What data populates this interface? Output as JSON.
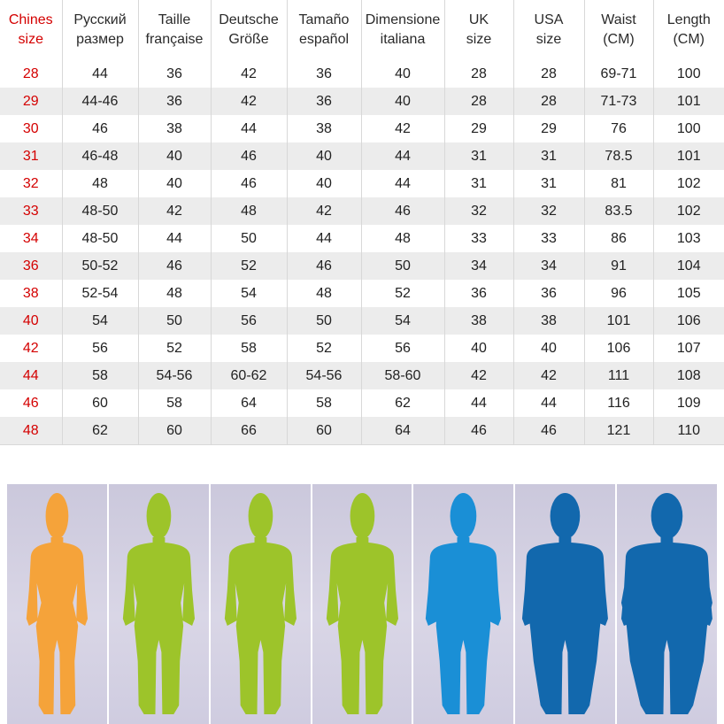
{
  "table": {
    "headers": [
      "Chines\nsize",
      "Русский\nразмер",
      "Taille\nfrançaise",
      "Deutsche\nGröße",
      "Tamaño\nespañol",
      "Dimensione\nitaliana",
      "UK\nsize",
      "USA\nsize",
      "Waist\n(CM)",
      "Length\n(CM)"
    ],
    "rows": [
      [
        "28",
        "44",
        "36",
        "42",
        "36",
        "40",
        "28",
        "28",
        "69-71",
        "100"
      ],
      [
        "29",
        "44-46",
        "36",
        "42",
        "36",
        "40",
        "28",
        "28",
        "71-73",
        "101"
      ],
      [
        "30",
        "46",
        "38",
        "44",
        "38",
        "42",
        "29",
        "29",
        "76",
        "100"
      ],
      [
        "31",
        "46-48",
        "40",
        "46",
        "40",
        "44",
        "31",
        "31",
        "78.5",
        "101"
      ],
      [
        "32",
        "48",
        "40",
        "46",
        "40",
        "44",
        "31",
        "31",
        "81",
        "102"
      ],
      [
        "33",
        "48-50",
        "42",
        "48",
        "42",
        "46",
        "32",
        "32",
        "83.5",
        "102"
      ],
      [
        "34",
        "48-50",
        "44",
        "50",
        "44",
        "48",
        "33",
        "33",
        "86",
        "103"
      ],
      [
        "36",
        "50-52",
        "46",
        "52",
        "46",
        "50",
        "34",
        "34",
        "91",
        "104"
      ],
      [
        "38",
        "52-54",
        "48",
        "54",
        "48",
        "52",
        "36",
        "36",
        "96",
        "105"
      ],
      [
        "40",
        "54",
        "50",
        "56",
        "50",
        "54",
        "38",
        "38",
        "101",
        "106"
      ],
      [
        "42",
        "56",
        "52",
        "58",
        "52",
        "56",
        "40",
        "40",
        "106",
        "107"
      ],
      [
        "44",
        "58",
        "54-56",
        "60-62",
        "54-56",
        "58-60",
        "42",
        "42",
        "111",
        "108"
      ],
      [
        "46",
        "60",
        "58",
        "64",
        "58",
        "62",
        "44",
        "44",
        "116",
        "109"
      ],
      [
        "48",
        "62",
        "60",
        "66",
        "60",
        "64",
        "46",
        "46",
        "121",
        "110"
      ]
    ]
  },
  "figures": [
    {
      "name": "slim-figure-icon",
      "color": "#f5a33a",
      "build": "slim"
    },
    {
      "name": "regular-figure-icon",
      "color": "#9dc42a",
      "build": "regular"
    },
    {
      "name": "regular-figure-icon",
      "color": "#9dc42a",
      "build": "regular"
    },
    {
      "name": "regular-figure-icon",
      "color": "#9dc42a",
      "build": "regular"
    },
    {
      "name": "stocky-figure-icon",
      "color": "#1a8fd6",
      "build": "stocky"
    },
    {
      "name": "heavy-figure-icon",
      "color": "#1268ad",
      "build": "heavy"
    },
    {
      "name": "very-heavy-figure-icon",
      "color": "#1268ad",
      "build": "very-heavy"
    }
  ]
}
